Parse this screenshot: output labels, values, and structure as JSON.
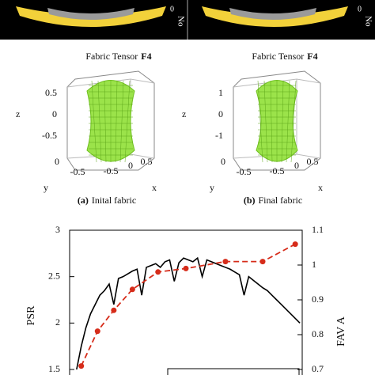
{
  "top_images": [
    {
      "side_label": "No",
      "box_label": "0"
    },
    {
      "side_label": "No",
      "box_label": "0"
    }
  ],
  "panels": [
    {
      "title": "Fabric Tensor",
      "title_bold": "F4",
      "z_label": "z",
      "y_label": "y",
      "x_label": "x",
      "z_ticks": [
        "0.5",
        "0",
        "-0.5"
      ],
      "y_ticks": [
        "0",
        "-0.5"
      ],
      "x_ticks": [
        "-0.5",
        "0",
        "0.5"
      ],
      "caption_tag": "(a)",
      "caption": "Inital fabric"
    },
    {
      "title": "Fabric Tensor",
      "title_bold": "F4",
      "z_label": "z",
      "y_label": "y",
      "x_label": "x",
      "z_ticks": [
        "1",
        "0",
        "-1"
      ],
      "y_ticks": [
        "0",
        "-0.5"
      ],
      "x_ticks": [
        "-0.5",
        "0",
        "0.5"
      ],
      "caption_tag": "(b)",
      "caption": "Final fabric"
    }
  ],
  "chart_data": {
    "type": "line",
    "ylabel": "PSR",
    "y2label": "FAV A",
    "xlim": [
      0,
      100
    ],
    "ylim": [
      1.5,
      3
    ],
    "yticks": [
      1.5,
      2,
      2.5,
      3
    ],
    "y2lim": [
      0.7,
      1.1
    ],
    "y2ticks": [
      0.7,
      0.8,
      0.9,
      1,
      1.1
    ],
    "series": [
      {
        "name": "PSR",
        "color": "#000000",
        "x": [
          3,
          5,
          7,
          9,
          11,
          13,
          15,
          17,
          19,
          21,
          23,
          25,
          27,
          29,
          31,
          33,
          35,
          37,
          39,
          41,
          43,
          45,
          47,
          49,
          51,
          53,
          55,
          57,
          59,
          61,
          63,
          65,
          67,
          69,
          71,
          73,
          75,
          77,
          79,
          81,
          83,
          85,
          87,
          89,
          91,
          93,
          95,
          97,
          99
        ],
        "values": [
          1.5,
          1.75,
          1.95,
          2.1,
          2.2,
          2.3,
          2.35,
          2.42,
          2.2,
          2.48,
          2.5,
          2.53,
          2.56,
          2.58,
          2.3,
          2.6,
          2.62,
          2.64,
          2.6,
          2.66,
          2.68,
          2.45,
          2.65,
          2.7,
          2.68,
          2.66,
          2.7,
          2.5,
          2.68,
          2.66,
          2.64,
          2.62,
          2.6,
          2.58,
          2.55,
          2.52,
          2.3,
          2.5,
          2.46,
          2.42,
          2.38,
          2.35,
          2.3,
          2.25,
          2.2,
          2.15,
          2.1,
          2.05,
          2.0
        ]
      },
      {
        "name": "FAV A",
        "color": "#d62c1a",
        "axis": "y2",
        "x": [
          5,
          12,
          19,
          27,
          38,
          50,
          67,
          83,
          97
        ],
        "values": [
          0.71,
          0.81,
          0.87,
          0.93,
          0.98,
          0.99,
          1.01,
          1.01,
          1.06
        ]
      }
    ]
  }
}
